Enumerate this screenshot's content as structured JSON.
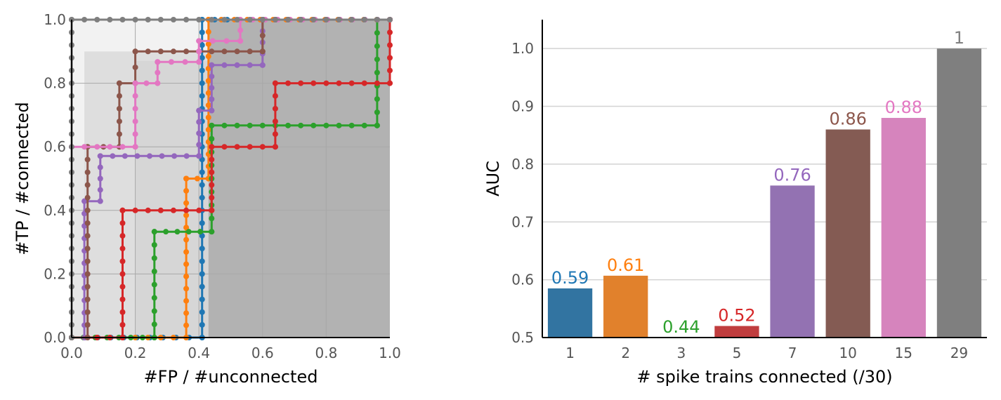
{
  "chart_data": [
    {
      "type": "line",
      "subtype": "roc-step",
      "xlabel": "#FP / #unconnected",
      "ylabel": "#TP / #connected",
      "xlim": [
        0,
        1
      ],
      "ylim": [
        0,
        1
      ],
      "x_ticks": [
        "0.0",
        "0.2",
        "0.4",
        "0.6",
        "0.8",
        "1.0"
      ],
      "y_ticks": [
        "0.0",
        "0.2",
        "0.4",
        "0.6",
        "0.8",
        "1.0"
      ],
      "grid": true,
      "shaded_background": true,
      "series": [
        {
          "color": "#1f77b4",
          "x": [
            0,
            0.41,
            0.41,
            1.0
          ],
          "y": [
            0,
            0,
            1.0,
            1.0
          ]
        },
        {
          "color": "#ff7f0e",
          "x": [
            0,
            0.36,
            0.36,
            0.43,
            0.43,
            1.0
          ],
          "y": [
            0,
            0,
            0.5,
            0.5,
            1.0,
            1.0
          ]
        },
        {
          "color": "#2ca02c",
          "x": [
            0,
            0.26,
            0.26,
            0.44,
            0.44,
            0.96,
            0.96,
            1.0
          ],
          "y": [
            0,
            0,
            0.333,
            0.333,
            0.667,
            0.667,
            1.0,
            1.0
          ]
        },
        {
          "color": "#d62728",
          "x": [
            0,
            0.16,
            0.16,
            0.44,
            0.44,
            0.64,
            0.64,
            1.0,
            1.0
          ],
          "y": [
            0,
            0,
            0.4,
            0.4,
            0.6,
            0.6,
            0.8,
            0.8,
            1.0
          ]
        },
        {
          "color": "#9467bd",
          "x": [
            0,
            0.04,
            0.04,
            0.09,
            0.09,
            0.4,
            0.4,
            0.44,
            0.44,
            0.6,
            0.6,
            1.0
          ],
          "y": [
            0,
            0,
            0.429,
            0.429,
            0.571,
            0.571,
            0.714,
            0.714,
            0.857,
            0.857,
            1.0,
            1.0
          ]
        },
        {
          "color": "#8c564b",
          "x": [
            0,
            0.05,
            0.05,
            0.15,
            0.15,
            0.2,
            0.2,
            0.6,
            0.6,
            1.0
          ],
          "y": [
            0,
            0,
            0.6,
            0.6,
            0.8,
            0.8,
            0.9,
            0.9,
            1.0,
            1.0
          ]
        },
        {
          "color": "#e377c2",
          "x": [
            0,
            0.2,
            0.2,
            0.27,
            0.27,
            0.4,
            0.4,
            0.53,
            0.53,
            1.0
          ],
          "y": [
            0.6,
            0.6,
            0.8,
            0.8,
            0.867,
            0.867,
            0.933,
            0.933,
            1.0,
            1.0
          ]
        },
        {
          "color": "#7f7f7f",
          "x": [
            0,
            0,
            1.0
          ],
          "y": [
            0,
            1.0,
            1.0
          ]
        }
      ]
    },
    {
      "type": "bar",
      "xlabel": "# spike trains connected (/30)",
      "ylabel": "AUC",
      "categories": [
        "1",
        "2",
        "3",
        "5",
        "7",
        "10",
        "15",
        "29"
      ],
      "values": [
        0.585,
        0.607,
        0.44,
        0.52,
        0.763,
        0.86,
        0.88,
        1.0
      ],
      "value_labels": [
        "0.59",
        "0.61",
        "0.44",
        "0.52",
        "0.76",
        "0.86",
        "0.88",
        "1"
      ],
      "colors": [
        "#3274a1",
        "#e1812c",
        "#3a923a",
        "#c03d3e",
        "#9372b2",
        "#845b53",
        "#d684bd",
        "#7f7f7f"
      ],
      "label_colors": [
        "#1f77b4",
        "#ff7f0e",
        "#2ca02c",
        "#d62728",
        "#9467bd",
        "#8c564b",
        "#e377c2",
        "#7f7f7f"
      ],
      "ylim": [
        0.5,
        1.05
      ],
      "y_ticks": [
        "0.5",
        "0.6",
        "0.7",
        "0.8",
        "0.9",
        "1.0"
      ],
      "grid": "horizontal"
    }
  ]
}
